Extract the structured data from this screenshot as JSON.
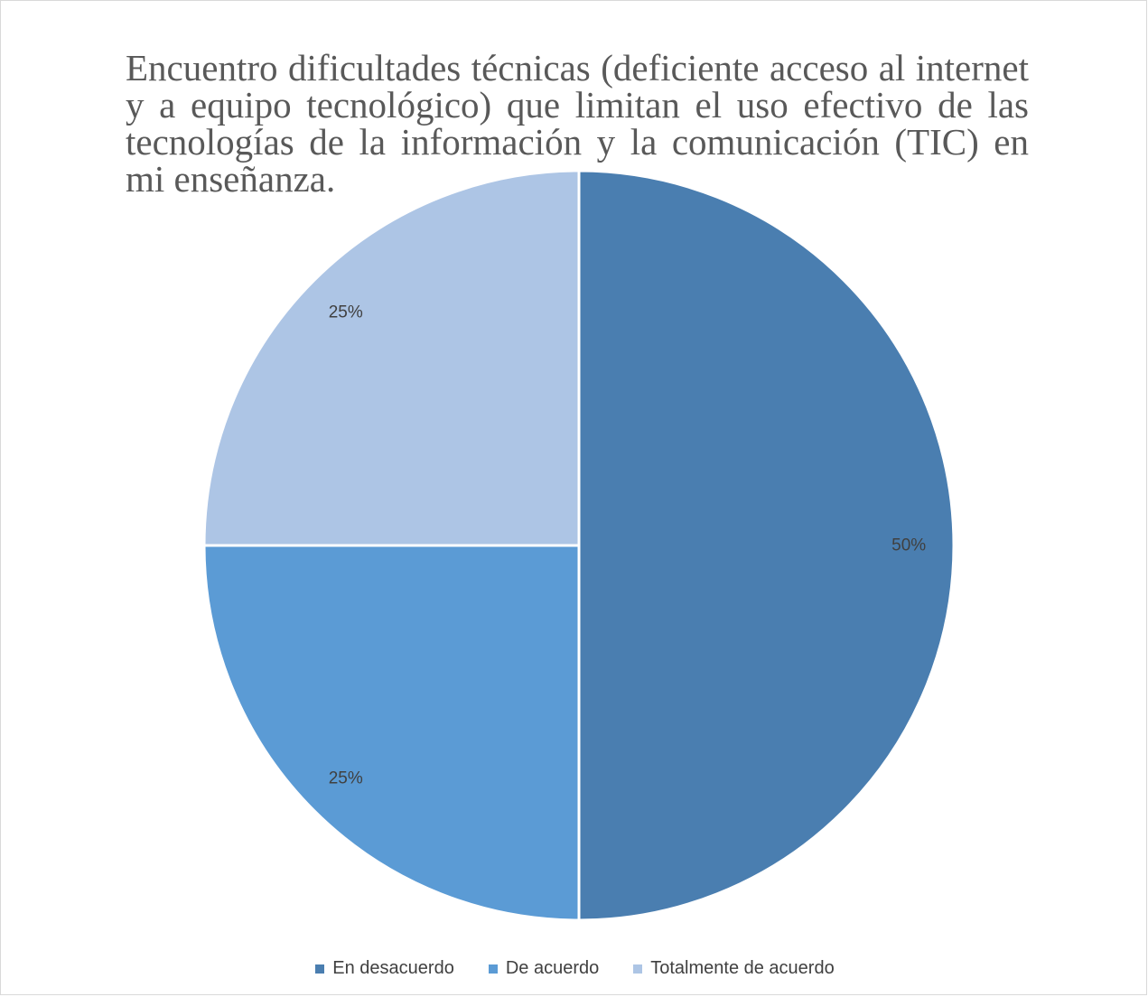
{
  "chart_data": {
    "type": "pie",
    "title": "Encuentro dificultades técnicas (deficiente acceso al internet y a equipo tecnológico) que limitan el uso efectivo de las tecnologías de la información y la comunicación (TIC) en mi enseñanza.",
    "slices": [
      {
        "label": "En desacuerdo",
        "value": 50,
        "display": "50%",
        "color": "#4a7eb0"
      },
      {
        "label": "De acuerdo",
        "value": 25,
        "display": "25%",
        "color": "#5b9bd5"
      },
      {
        "label": "Totalmente de acuerdo",
        "value": 25,
        "display": "25%",
        "color": "#adc5e5"
      }
    ],
    "legend_position": "bottom",
    "start_angle": "12 o'clock, clockwise"
  }
}
